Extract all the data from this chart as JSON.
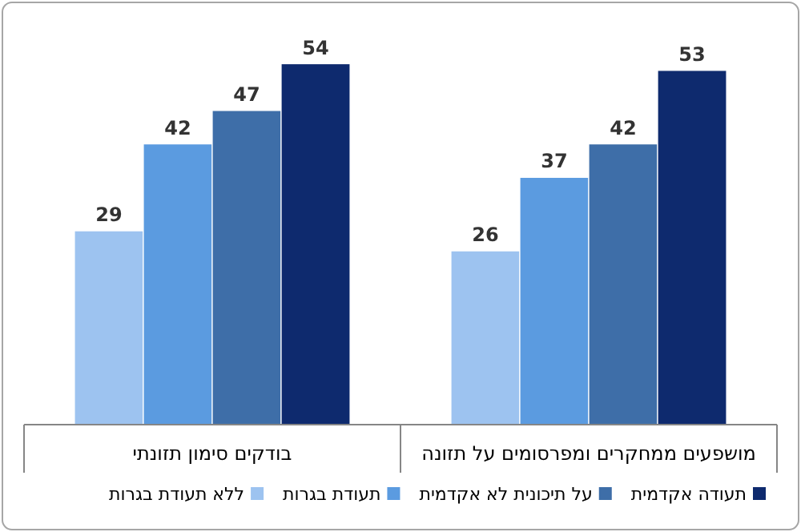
{
  "chart_data": {
    "type": "bar",
    "categories": [
      "בודקים סימון תזונתי",
      "מושפעים ממחקרים ומפרסומים על תזונה"
    ],
    "series": [
      {
        "name": "ללא תעודת בגרות",
        "color": "#9dc3f0",
        "values": [
          29,
          26
        ]
      },
      {
        "name": "תעודת בגרות",
        "color": "#5b9be0",
        "values": [
          42,
          37
        ]
      },
      {
        "name": "על תיכונית לא אקדמית",
        "color": "#3e6ea8",
        "values": [
          47,
          42
        ]
      },
      {
        "name": "תעודה אקדמית",
        "color": "#0e2a6e",
        "values": [
          54,
          53
        ]
      }
    ],
    "data_labels": true,
    "legend": "bottom",
    "grid": false
  }
}
